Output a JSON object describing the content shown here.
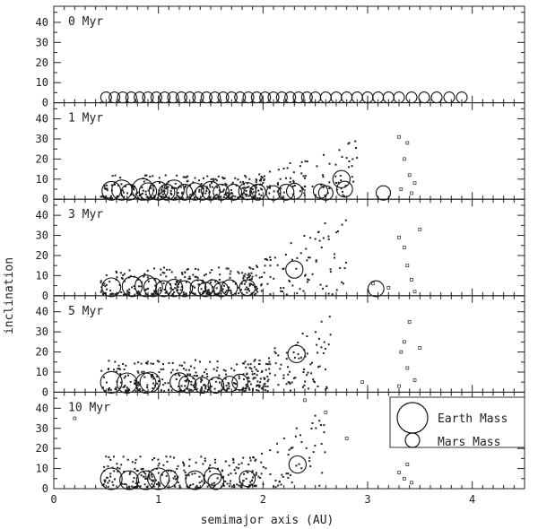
{
  "chart_data": {
    "type": "scatter",
    "xlabel": "semimajor axis (AU)",
    "ylabel": "inclination",
    "xlim": [
      0,
      4.5
    ],
    "ylim": [
      0,
      48
    ],
    "x_ticks": [
      0,
      1,
      2,
      3,
      4
    ],
    "y_ticks": [
      0,
      10,
      20,
      30,
      40
    ],
    "grid": false,
    "legend": {
      "placement": "inside-lower-right",
      "entries": [
        {
          "label": "Earth Mass",
          "marker": "large-open-circle"
        },
        {
          "label": "Mars Mass",
          "marker": "small-open-circle"
        }
      ]
    },
    "panels": [
      {
        "label": "0 Myr",
        "embryos_a": [
          0.5,
          0.58,
          0.66,
          0.74,
          0.82,
          0.9,
          0.98,
          1.06,
          1.14,
          1.22,
          1.3,
          1.38,
          1.46,
          1.54,
          1.62,
          1.7,
          1.78,
          1.86,
          1.94,
          2.02,
          2.1,
          2.18,
          2.26,
          2.34,
          2.42,
          2.5,
          2.6,
          2.7,
          2.8,
          2.9,
          3.0,
          3.1,
          3.2,
          3.3,
          3.42,
          3.54,
          3.66,
          3.78,
          3.9
        ],
        "embryos": [],
        "planetesimals": [
          [
            0.45,
            0.1
          ],
          [
            0.7,
            0.2
          ],
          [
            1.0,
            0.1
          ],
          [
            1.5,
            0.2
          ],
          [
            2.0,
            0.1
          ],
          [
            2.5,
            0.2
          ],
          [
            3.0,
            0.1
          ],
          [
            3.5,
            0.2
          ]
        ],
        "outer": []
      },
      {
        "label": "1 Myr",
        "embryos": [
          [
            0.55,
            2,
            0.8
          ],
          [
            0.65,
            3,
            0.9
          ],
          [
            0.72,
            2,
            0.6
          ],
          [
            0.85,
            3,
            1.0
          ],
          [
            0.9,
            2,
            0.7
          ],
          [
            1.0,
            3,
            0.8
          ],
          [
            1.08,
            2,
            0.6
          ],
          [
            1.15,
            3,
            0.9
          ],
          [
            1.25,
            2,
            0.6
          ],
          [
            1.35,
            3,
            0.7
          ],
          [
            1.42,
            2,
            0.5
          ],
          [
            1.5,
            4,
            0.8
          ],
          [
            1.6,
            2,
            0.6
          ],
          [
            1.72,
            2,
            0.6
          ],
          [
            1.85,
            4,
            0.7
          ],
          [
            1.95,
            2,
            0.6
          ],
          [
            2.1,
            2,
            0.5
          ],
          [
            2.22,
            3,
            0.6
          ],
          [
            2.3,
            4,
            0.6
          ],
          [
            2.55,
            4,
            0.5
          ],
          [
            2.6,
            2,
            0.5
          ],
          [
            2.75,
            10,
            0.7
          ],
          [
            2.78,
            5,
            0.6
          ],
          [
            3.15,
            2,
            0.5
          ]
        ],
        "planetesimals": {
          "seed": 11,
          "n": 260,
          "amin": 0.45,
          "amax": 2.0,
          "imin": 0.5,
          "imax": 12
        },
        "spread": {
          "seed": 12,
          "n": 110,
          "amin": 1.8,
          "amax": 2.9,
          "imin": 0.5,
          "imax": 30
        },
        "outer": [
          [
            3.3,
            31
          ],
          [
            3.35,
            20
          ],
          [
            3.4,
            12
          ],
          [
            3.38,
            28
          ],
          [
            3.32,
            5
          ],
          [
            3.45,
            8
          ],
          [
            3.42,
            3
          ]
        ]
      },
      {
        "label": "3 Myr",
        "embryos": [
          [
            0.55,
            2,
            0.8
          ],
          [
            0.75,
            3,
            0.9
          ],
          [
            0.88,
            4,
            1.0
          ],
          [
            0.95,
            3,
            0.8
          ],
          [
            1.05,
            2,
            0.6
          ],
          [
            1.15,
            3,
            0.7
          ],
          [
            1.25,
            2,
            0.6
          ],
          [
            1.38,
            4,
            0.6
          ],
          [
            1.45,
            3,
            0.5
          ],
          [
            1.52,
            4,
            0.6
          ],
          [
            1.6,
            3,
            0.5
          ],
          [
            1.68,
            4,
            0.6
          ],
          [
            1.85,
            4,
            0.6
          ],
          [
            2.3,
            13,
            0.7
          ],
          [
            3.08,
            1,
            0.6
          ]
        ],
        "planetesimals": {
          "seed": 21,
          "n": 240,
          "amin": 0.45,
          "amax": 1.95,
          "imin": 0.5,
          "imax": 14
        },
        "spread": {
          "seed": 22,
          "n": 100,
          "amin": 1.8,
          "amax": 2.8,
          "imin": 0.5,
          "imax": 42
        },
        "outer": [
          [
            3.3,
            29
          ],
          [
            3.35,
            24
          ],
          [
            3.38,
            15
          ],
          [
            3.42,
            8
          ],
          [
            3.45,
            2
          ],
          [
            3.2,
            4
          ],
          [
            3.05,
            6
          ],
          [
            3.5,
            33
          ]
        ]
      },
      {
        "label": "5 Myr",
        "embryos": [
          [
            0.55,
            2,
            1.0
          ],
          [
            0.7,
            2,
            0.9
          ],
          [
            0.88,
            3,
            0.9
          ],
          [
            0.92,
            5,
            0.9
          ],
          [
            1.2,
            5,
            0.8
          ],
          [
            1.28,
            4,
            0.7
          ],
          [
            1.42,
            3,
            0.6
          ],
          [
            1.55,
            3,
            0.6
          ],
          [
            1.68,
            4,
            0.6
          ],
          [
            1.78,
            5,
            0.6
          ],
          [
            2.32,
            19,
            0.7
          ]
        ],
        "planetesimals": {
          "seed": 31,
          "n": 260,
          "amin": 0.45,
          "amax": 2.05,
          "imin": 0.5,
          "imax": 16
        },
        "spread": {
          "seed": 32,
          "n": 100,
          "amin": 1.8,
          "amax": 2.65,
          "imin": 0.5,
          "imax": 40
        },
        "outer": [
          [
            3.4,
            35
          ],
          [
            3.35,
            25
          ],
          [
            3.32,
            20
          ],
          [
            3.38,
            12
          ],
          [
            3.45,
            6
          ],
          [
            3.3,
            3
          ],
          [
            3.5,
            22
          ],
          [
            2.95,
            5
          ]
        ]
      },
      {
        "label": "10 Myr",
        "embryos": [
          [
            0.55,
            3,
            1.0
          ],
          [
            0.72,
            2,
            0.8
          ],
          [
            0.88,
            4,
            0.8
          ],
          [
            1.0,
            2,
            1.0
          ],
          [
            1.1,
            5,
            0.7
          ],
          [
            1.35,
            3,
            0.8
          ],
          [
            1.52,
            6,
            0.7
          ],
          [
            1.55,
            2,
            0.6
          ],
          [
            1.85,
            5,
            0.6
          ],
          [
            2.33,
            12,
            0.7
          ]
        ],
        "planetesimals": {
          "seed": 41,
          "n": 220,
          "amin": 0.45,
          "amax": 1.95,
          "imin": 0.5,
          "imax": 16
        },
        "spread": {
          "seed": 42,
          "n": 70,
          "amin": 1.8,
          "amax": 2.6,
          "imin": 0.5,
          "imax": 40
        },
        "outer": [
          [
            0.2,
            35
          ],
          [
            2.4,
            44
          ],
          [
            2.6,
            38
          ],
          [
            2.8,
            25
          ],
          [
            3.38,
            12
          ],
          [
            3.35,
            5
          ],
          [
            3.42,
            3
          ],
          [
            3.3,
            8
          ]
        ]
      }
    ]
  }
}
